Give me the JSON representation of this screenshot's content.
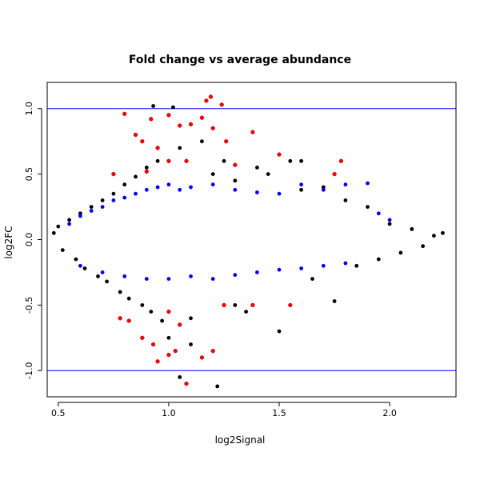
{
  "chart_data": {
    "type": "scatter",
    "title": "Fold change vs average abundance",
    "xlabel": "log2Signal",
    "ylabel": "log2FC",
    "xlim": [
      0.45,
      2.3
    ],
    "ylim": [
      -1.2,
      1.2
    ],
    "x_ticks": [
      0.5,
      1.0,
      1.5,
      2.0
    ],
    "x_tick_labels": [
      "0.5",
      "1.0",
      "1.5",
      "2.0"
    ],
    "y_ticks": [
      -1.0,
      -0.5,
      0.0,
      0.5,
      1.0
    ],
    "y_tick_labels": [
      "-1.0",
      "-0.5",
      "0.0",
      "0.5",
      "1.0"
    ],
    "hlines": [
      1.0,
      -1.0
    ],
    "hline_color": "#0000ff",
    "series_colors": {
      "all": "#000000",
      "significant_low": "#0000ff",
      "significant_high": "#ff0000"
    },
    "series": [
      {
        "color": "#000000",
        "note": "all features (dense cloud)",
        "points": [
          [
            0.48,
            0.05
          ],
          [
            0.5,
            0.1
          ],
          [
            0.52,
            -0.08
          ],
          [
            0.55,
            0.15
          ],
          [
            0.58,
            -0.15
          ],
          [
            0.6,
            0.2
          ],
          [
            0.62,
            -0.22
          ],
          [
            0.65,
            0.25
          ],
          [
            0.68,
            -0.28
          ],
          [
            0.7,
            0.3
          ],
          [
            0.72,
            -0.32
          ],
          [
            0.75,
            0.35
          ],
          [
            0.78,
            -0.4
          ],
          [
            0.8,
            0.42
          ],
          [
            0.82,
            -0.45
          ],
          [
            0.85,
            0.48
          ],
          [
            0.88,
            -0.5
          ],
          [
            0.9,
            0.55
          ],
          [
            0.92,
            -0.55
          ],
          [
            0.95,
            0.6
          ],
          [
            0.97,
            -0.62
          ],
          [
            0.93,
            1.02
          ],
          [
            1.02,
            1.01
          ],
          [
            1.05,
            -1.05
          ],
          [
            1.22,
            -1.12
          ],
          [
            1.0,
            -0.75
          ],
          [
            1.1,
            -0.8
          ],
          [
            1.2,
            0.5
          ],
          [
            1.3,
            0.45
          ],
          [
            1.35,
            -0.55
          ],
          [
            1.45,
            0.5
          ],
          [
            1.5,
            -0.7
          ],
          [
            1.55,
            0.6
          ],
          [
            1.6,
            0.38
          ],
          [
            1.65,
            -0.3
          ],
          [
            1.7,
            0.4
          ],
          [
            1.75,
            -0.47
          ],
          [
            1.8,
            0.3
          ],
          [
            1.85,
            -0.2
          ],
          [
            1.9,
            0.25
          ],
          [
            1.95,
            -0.15
          ],
          [
            2.0,
            0.12
          ],
          [
            2.05,
            -0.1
          ],
          [
            2.1,
            0.08
          ],
          [
            2.15,
            -0.05
          ],
          [
            2.2,
            0.03
          ],
          [
            2.24,
            0.05
          ],
          [
            1.05,
            0.7
          ],
          [
            1.15,
            0.75
          ],
          [
            1.25,
            0.6
          ],
          [
            1.4,
            0.55
          ],
          [
            1.1,
            -0.6
          ],
          [
            1.3,
            -0.5
          ],
          [
            1.6,
            0.6
          ]
        ]
      },
      {
        "color": "#0000ff",
        "note": "moderately changed features",
        "points": [
          [
            0.55,
            0.12
          ],
          [
            0.6,
            0.18
          ],
          [
            0.65,
            0.22
          ],
          [
            0.7,
            0.25
          ],
          [
            0.75,
            0.3
          ],
          [
            0.8,
            0.32
          ],
          [
            0.85,
            0.35
          ],
          [
            0.9,
            0.38
          ],
          [
            0.95,
            0.4
          ],
          [
            1.0,
            0.42
          ],
          [
            1.05,
            0.38
          ],
          [
            1.1,
            0.4
          ],
          [
            1.2,
            0.42
          ],
          [
            1.3,
            0.38
          ],
          [
            1.4,
            0.36
          ],
          [
            1.5,
            0.35
          ],
          [
            1.6,
            0.42
          ],
          [
            1.7,
            0.38
          ],
          [
            1.8,
            0.42
          ],
          [
            1.9,
            0.43
          ],
          [
            1.95,
            0.2
          ],
          [
            2.0,
            0.15
          ],
          [
            0.6,
            -0.2
          ],
          [
            0.7,
            -0.25
          ],
          [
            0.8,
            -0.28
          ],
          [
            0.9,
            -0.3
          ],
          [
            1.0,
            -0.3
          ],
          [
            1.1,
            -0.28
          ],
          [
            1.2,
            -0.3
          ],
          [
            1.3,
            -0.27
          ],
          [
            1.4,
            -0.25
          ],
          [
            1.5,
            -0.23
          ],
          [
            1.6,
            -0.22
          ],
          [
            1.7,
            -0.2
          ],
          [
            1.8,
            -0.18
          ]
        ]
      },
      {
        "color": "#ff0000",
        "note": "strongly changed features",
        "points": [
          [
            0.8,
            0.96
          ],
          [
            0.92,
            0.92
          ],
          [
            1.0,
            0.95
          ],
          [
            1.05,
            0.87
          ],
          [
            1.1,
            0.88
          ],
          [
            1.15,
            0.93
          ],
          [
            1.17,
            1.06
          ],
          [
            1.19,
            1.09
          ],
          [
            1.24,
            1.03
          ],
          [
            1.2,
            0.85
          ],
          [
            1.26,
            0.75
          ],
          [
            1.38,
            0.82
          ],
          [
            1.5,
            0.65
          ],
          [
            1.78,
            0.6
          ],
          [
            1.75,
            0.5
          ],
          [
            0.85,
            0.8
          ],
          [
            0.88,
            0.75
          ],
          [
            0.95,
            0.7
          ],
          [
            1.0,
            0.6
          ],
          [
            1.08,
            0.6
          ],
          [
            1.3,
            0.57
          ],
          [
            0.75,
            0.5
          ],
          [
            0.9,
            0.52
          ],
          [
            0.78,
            -0.6
          ],
          [
            0.82,
            -0.62
          ],
          [
            0.88,
            -0.75
          ],
          [
            0.93,
            -0.8
          ],
          [
            0.95,
            -0.93
          ],
          [
            1.0,
            -0.88
          ],
          [
            1.03,
            -0.85
          ],
          [
            1.05,
            -0.65
          ],
          [
            1.08,
            -1.1
          ],
          [
            1.15,
            -0.9
          ],
          [
            1.2,
            -0.85
          ],
          [
            1.25,
            -0.5
          ],
          [
            1.38,
            -0.5
          ],
          [
            1.55,
            -0.5
          ],
          [
            1.0,
            -0.55
          ]
        ]
      }
    ]
  }
}
